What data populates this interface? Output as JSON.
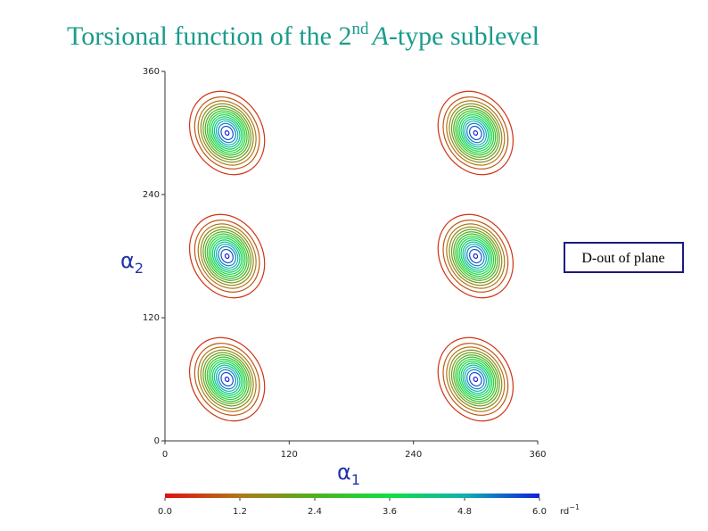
{
  "chart_data": {
    "type": "contour",
    "title": {
      "text": "Torsional function of the 2",
      "sup": "nd",
      "italic": "A",
      "rest": "-type sublevel"
    },
    "xlabel": {
      "symbol": "α",
      "sub": "1"
    },
    "ylabel": {
      "symbol": "α",
      "sub": "2"
    },
    "xlim": [
      0,
      360
    ],
    "ylim": [
      0,
      360
    ],
    "xticks": [
      0,
      120,
      240,
      360
    ],
    "yticks": [
      0,
      120,
      240,
      360
    ],
    "peaks": [
      {
        "x": 60,
        "y": 60
      },
      {
        "x": 60,
        "y": 180
      },
      {
        "x": 60,
        "y": 300
      },
      {
        "x": 300,
        "y": 60
      },
      {
        "x": 300,
        "y": 180
      },
      {
        "x": 300,
        "y": 300
      }
    ],
    "levels": [
      0.4,
      0.8,
      1.2,
      1.6,
      2.0,
      2.4,
      2.8,
      3.2,
      3.6,
      4.0,
      4.4,
      4.8,
      5.2,
      5.6,
      6.0
    ],
    "colorscale": [
      "#e01010",
      "#b07818",
      "#50b020",
      "#10e040",
      "#10b0b0",
      "#1020e0"
    ],
    "clim": [
      0,
      6
    ],
    "cticks": [
      {
        "value": 0,
        "label": "0.0"
      },
      {
        "value": 1.2,
        "label": "1.2"
      },
      {
        "value": 2.4,
        "label": "2.4"
      },
      {
        "value": 3.6,
        "label": "3.6"
      },
      {
        "value": 4.8,
        "label": "4.8"
      },
      {
        "value": 6,
        "label": "6.0"
      }
    ],
    "cunit": {
      "text": "rd",
      "sup": "−1"
    },
    "annotation": "D-out of plane"
  }
}
